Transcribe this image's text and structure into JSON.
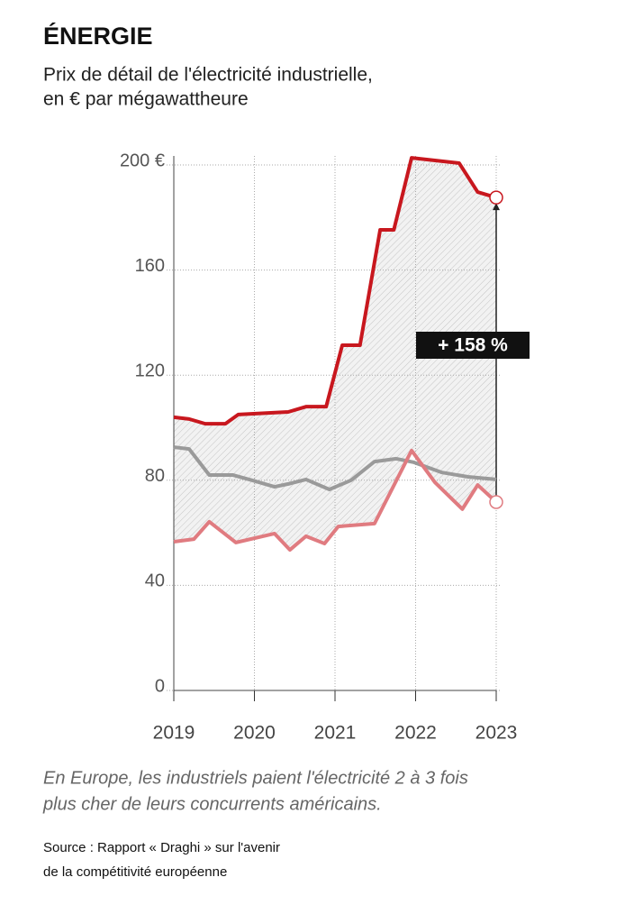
{
  "chart_data": {
    "type": "line",
    "title": "ÉNERGIE",
    "subtitle": [
      "Prix de détail de l'électricité industrielle,",
      "en € par mégawattheure"
    ],
    "annotation": "+ 158 %",
    "note": [
      "En Europe, les industriels paient l'électricité 2 à 3 fois",
      "plus cher de leurs concurrents américains."
    ],
    "source": [
      "Source : Rapport « Draghi » sur l'avenir",
      "de la compétitivité européenne"
    ],
    "xlim": [
      2019,
      2023
    ],
    "xticks": [
      2019,
      2020,
      2021,
      2022,
      2023
    ],
    "ylim": [
      0,
      200
    ],
    "yticks": [
      0,
      40,
      80,
      120,
      160,
      {
        "value": 200,
        "label": "200 €"
      }
    ],
    "grid": true,
    "series": [
      {
        "color": "#c8171e",
        "x": [
          2019,
          2019.19,
          2019.39,
          2019.64,
          2019.8,
          2020.42,
          2020.64,
          2020.89,
          2021.09,
          2021.31,
          2021.56,
          2021.73,
          2021.95,
          2022.54,
          2022.77,
          2023
        ],
        "values": [
          104,
          103.3,
          101.5,
          101.5,
          105,
          106,
          108,
          108,
          131.4,
          131.4,
          175.3,
          175.3,
          202.7,
          200.7,
          189.7,
          187.6
        ]
      },
      {
        "color": "#9a9a9a",
        "x": [
          2019,
          2019.19,
          2019.44,
          2019.73,
          2019.97,
          2020.25,
          2020.42,
          2020.64,
          2020.93,
          2021.2,
          2021.49,
          2021.76,
          2021.98,
          2022.32,
          2022.65,
          2023
        ],
        "values": [
          92.6,
          91.9,
          82,
          82,
          80,
          77.5,
          78.6,
          80.3,
          76.5,
          80,
          87.1,
          88.2,
          86.8,
          83,
          81.3,
          80.3
        ]
      },
      {
        "color": "#e07b80",
        "x": [
          2019,
          2019.25,
          2019.44,
          2019.77,
          2020.25,
          2020.44,
          2020.64,
          2020.87,
          2021.04,
          2021.49,
          2021.95,
          2022.24,
          2022.58,
          2022.77,
          2023
        ],
        "values": [
          56.6,
          57.6,
          64.2,
          56.3,
          59.7,
          53.5,
          58.7,
          55.9,
          62.4,
          63.5,
          91.3,
          79.2,
          69,
          78.2,
          71.7
        ]
      }
    ]
  }
}
